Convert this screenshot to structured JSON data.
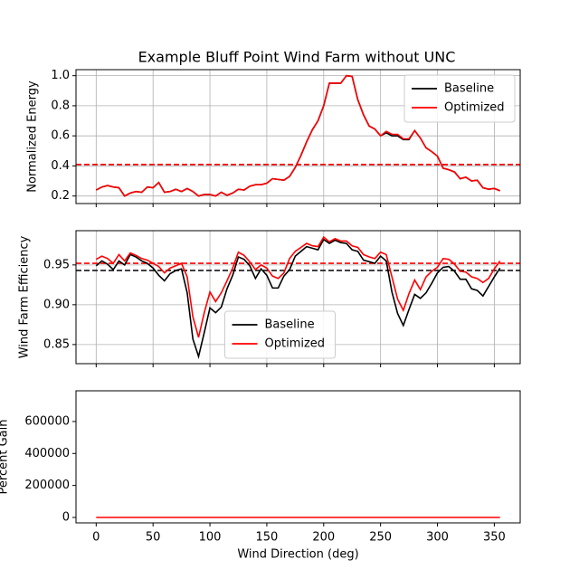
{
  "chart_data": [
    {
      "type": "line",
      "title": "Example Bluff Point Wind Farm without UNC",
      "ylabel": "Normalized Energy",
      "x": [
        0,
        5,
        10,
        15,
        20,
        25,
        30,
        35,
        40,
        45,
        50,
        55,
        60,
        65,
        70,
        75,
        80,
        85,
        90,
        95,
        100,
        105,
        110,
        115,
        120,
        125,
        130,
        135,
        140,
        145,
        150,
        155,
        160,
        165,
        170,
        175,
        180,
        185,
        190,
        195,
        200,
        205,
        210,
        215,
        220,
        225,
        230,
        235,
        240,
        245,
        250,
        255,
        260,
        265,
        270,
        275,
        280,
        285,
        290,
        295,
        300,
        305,
        310,
        315,
        320,
        325,
        330,
        335,
        340,
        345,
        350,
        355
      ],
      "series": [
        {
          "name": "Baseline",
          "color": "#000000",
          "values": [
            0.24,
            0.26,
            0.27,
            0.26,
            0.255,
            0.2,
            0.22,
            0.23,
            0.225,
            0.26,
            0.255,
            0.29,
            0.225,
            0.23,
            0.245,
            0.23,
            0.25,
            0.23,
            0.2,
            0.21,
            0.21,
            0.2,
            0.225,
            0.205,
            0.22,
            0.245,
            0.24,
            0.265,
            0.275,
            0.275,
            0.285,
            0.315,
            0.31,
            0.305,
            0.33,
            0.39,
            0.47,
            0.56,
            0.64,
            0.7,
            0.8,
            0.95,
            0.95,
            0.95,
            1.0,
            0.995,
            0.84,
            0.74,
            0.665,
            0.645,
            0.6,
            0.62,
            0.6,
            0.6,
            0.575,
            0.575,
            0.635,
            0.585,
            0.52,
            0.495,
            0.465,
            0.385,
            0.375,
            0.36,
            0.315,
            0.325,
            0.3,
            0.305,
            0.255,
            0.245,
            0.25,
            0.235
          ]
        },
        {
          "name": "Optimized",
          "color": "#ff0000",
          "values": [
            0.24,
            0.26,
            0.27,
            0.26,
            0.255,
            0.2,
            0.22,
            0.23,
            0.225,
            0.26,
            0.255,
            0.29,
            0.225,
            0.23,
            0.245,
            0.23,
            0.25,
            0.23,
            0.2,
            0.21,
            0.21,
            0.2,
            0.225,
            0.205,
            0.22,
            0.245,
            0.24,
            0.265,
            0.275,
            0.275,
            0.285,
            0.315,
            0.31,
            0.305,
            0.33,
            0.39,
            0.47,
            0.56,
            0.64,
            0.7,
            0.8,
            0.95,
            0.95,
            0.95,
            1.0,
            0.995,
            0.84,
            0.74,
            0.665,
            0.645,
            0.6,
            0.63,
            0.61,
            0.61,
            0.58,
            0.58,
            0.635,
            0.585,
            0.52,
            0.495,
            0.465,
            0.385,
            0.375,
            0.36,
            0.315,
            0.325,
            0.3,
            0.305,
            0.255,
            0.245,
            0.25,
            0.235
          ]
        }
      ],
      "hlines": [
        {
          "value": 0.41,
          "color": "#000000"
        },
        {
          "value": 0.41,
          "color": "#ff0000"
        }
      ],
      "xlim": [
        -17.75,
        372.75
      ],
      "ylim": [
        0.15,
        1.04
      ],
      "yticks": [
        0.2,
        0.4,
        0.6,
        0.8,
        {
          "value": 1.0,
          "label": "1.0"
        }
      ],
      "grid": true,
      "legend": "upper right"
    },
    {
      "type": "line",
      "ylabel": "Wind Farm Efficiency",
      "x": [
        0,
        5,
        10,
        15,
        20,
        25,
        30,
        35,
        40,
        45,
        50,
        55,
        60,
        65,
        70,
        75,
        80,
        85,
        90,
        95,
        100,
        105,
        110,
        115,
        120,
        125,
        130,
        135,
        140,
        145,
        150,
        155,
        160,
        165,
        170,
        175,
        180,
        185,
        190,
        195,
        200,
        205,
        210,
        215,
        220,
        225,
        230,
        235,
        240,
        245,
        250,
        255,
        260,
        265,
        270,
        275,
        280,
        285,
        290,
        295,
        300,
        305,
        310,
        315,
        320,
        325,
        330,
        335,
        340,
        345,
        350,
        355
      ],
      "series": [
        {
          "name": "Baseline",
          "color": "#000000",
          "values": [
            0.949,
            0.955,
            0.951,
            0.944,
            0.955,
            0.95,
            0.963,
            0.96,
            0.955,
            0.952,
            0.946,
            0.937,
            0.93,
            0.939,
            0.943,
            0.945,
            0.915,
            0.857,
            0.835,
            0.865,
            0.896,
            0.89,
            0.897,
            0.92,
            0.937,
            0.96,
            0.957,
            0.949,
            0.933,
            0.945,
            0.937,
            0.921,
            0.921,
            0.936,
            0.944,
            0.961,
            0.967,
            0.973,
            0.971,
            0.969,
            0.982,
            0.977,
            0.981,
            0.978,
            0.977,
            0.969,
            0.967,
            0.956,
            0.954,
            0.952,
            0.961,
            0.955,
            0.916,
            0.889,
            0.874,
            0.894,
            0.913,
            0.908,
            0.915,
            0.927,
            0.94,
            0.947,
            0.948,
            0.942,
            0.932,
            0.932,
            0.92,
            0.918,
            0.911,
            0.923,
            0.935,
            0.946
          ]
        },
        {
          "name": "Optimized",
          "color": "#ff0000",
          "values": [
            0.957,
            0.961,
            0.958,
            0.952,
            0.963,
            0.955,
            0.965,
            0.962,
            0.958,
            0.956,
            0.952,
            0.948,
            0.94,
            0.946,
            0.949,
            0.952,
            0.935,
            0.885,
            0.859,
            0.89,
            0.916,
            0.904,
            0.915,
            0.93,
            0.946,
            0.966,
            0.962,
            0.954,
            0.944,
            0.95,
            0.946,
            0.936,
            0.933,
            0.94,
            0.958,
            0.967,
            0.972,
            0.977,
            0.974,
            0.973,
            0.985,
            0.979,
            0.983,
            0.98,
            0.98,
            0.974,
            0.972,
            0.963,
            0.96,
            0.958,
            0.966,
            0.963,
            0.935,
            0.907,
            0.893,
            0.914,
            0.931,
            0.919,
            0.935,
            0.942,
            0.947,
            0.958,
            0.957,
            0.951,
            0.942,
            0.941,
            0.935,
            0.933,
            0.928,
            0.933,
            0.945,
            0.955
          ]
        }
      ],
      "hlines": [
        {
          "value": 0.943,
          "color": "#000000"
        },
        {
          "value": 0.952,
          "color": "#ff0000"
        }
      ],
      "xlim": [
        -17.75,
        372.75
      ],
      "ylim": [
        0.826,
        0.993
      ],
      "yticks": [
        0.85,
        {
          "value": 0.9,
          "label": "0.90"
        },
        0.95
      ],
      "grid": true,
      "legend": "lower center"
    },
    {
      "type": "line",
      "ylabel": "Percent Gain",
      "xlabel": "Wind Direction (deg)",
      "x": [
        0,
        5,
        10,
        15,
        20,
        25,
        30,
        35,
        40,
        45,
        50,
        55,
        60,
        65,
        70,
        75,
        80,
        85,
        90,
        95,
        100,
        105,
        110,
        115,
        120,
        125,
        130,
        135,
        140,
        145,
        150,
        155,
        160,
        165,
        170,
        175,
        180,
        185,
        190,
        195,
        200,
        205,
        210,
        215,
        220,
        225,
        230,
        235,
        240,
        245,
        250,
        255,
        260,
        265,
        270,
        275,
        280,
        285,
        290,
        295,
        300,
        305,
        310,
        315,
        320,
        325,
        330,
        335,
        340,
        345,
        350,
        355
      ],
      "series": [
        {
          "color": "#ff0000",
          "values": [
            0,
            0,
            0,
            0,
            0,
            0,
            0,
            0,
            0,
            0,
            0,
            0,
            0,
            0,
            0,
            0,
            0,
            0,
            0,
            0,
            0,
            0,
            0,
            0,
            0,
            0,
            0,
            0,
            0,
            0,
            0,
            0,
            0,
            0,
            0,
            0,
            0,
            0,
            0,
            0,
            0,
            0,
            0,
            0,
            0,
            0,
            0,
            0,
            0,
            0,
            0,
            0,
            0,
            0,
            0,
            0,
            0,
            0,
            0,
            0,
            0,
            0,
            0,
            0,
            0,
            0,
            0,
            0,
            0,
            0,
            0,
            0
          ]
        }
      ],
      "xlim": [
        -17.75,
        372.75
      ],
      "ylim": [
        -34000,
        792000
      ],
      "xticks": [
        0,
        50,
        100,
        150,
        200,
        250,
        300,
        350
      ],
      "yticks": [
        0,
        200000,
        400000,
        600000
      ],
      "grid": false
    }
  ]
}
